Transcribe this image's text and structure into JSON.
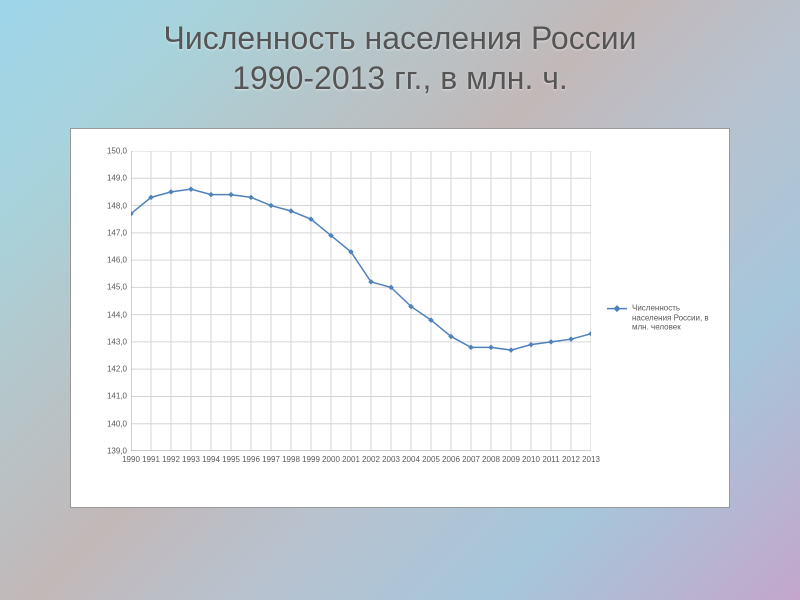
{
  "title_line1": "Численность населения России",
  "title_line2": "1990-2013 гг., в млн. ч.",
  "chart": {
    "type": "line",
    "years": [
      1990,
      1991,
      1992,
      1993,
      1994,
      1995,
      1996,
      1997,
      1998,
      1999,
      2000,
      2001,
      2002,
      2003,
      2004,
      2005,
      2006,
      2007,
      2008,
      2009,
      2010,
      2011,
      2012,
      2013
    ],
    "values": [
      147.7,
      148.3,
      148.5,
      148.6,
      148.4,
      148.4,
      148.3,
      148.0,
      147.8,
      147.5,
      146.9,
      146.3,
      145.2,
      145.0,
      144.3,
      143.8,
      143.2,
      142.8,
      142.8,
      142.7,
      142.9,
      143.0,
      143.1,
      143.3
    ],
    "ylim": [
      139.0,
      150.0
    ],
    "ytick_step": 1.0,
    "grid_color": "#d6d6d6",
    "axis_color": "#9e9e9e",
    "line_color": "#4f81bd",
    "marker_color": "#4f81bd",
    "marker_fill": "#4f81bd",
    "line_width": 1.5,
    "marker_radius": 2.2,
    "background_color": "#ffffff",
    "label_fontsize": 8,
    "legend_label": "Численность населения России, в млн. человек"
  }
}
